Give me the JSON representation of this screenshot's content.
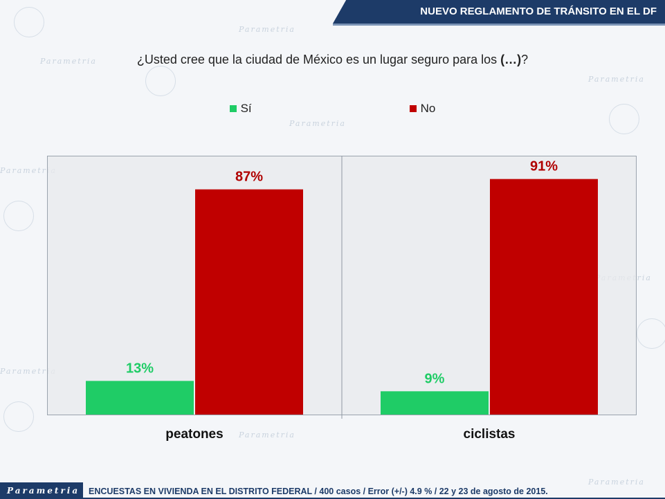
{
  "header": {
    "title": "NUEVO REGLAMENTO DE TRÁNSITO EN EL DF"
  },
  "question": {
    "prefix": "¿Usted cree que la ciudad de México es un lugar seguro para los ",
    "bold": "(…)",
    "suffix": "?"
  },
  "legend": [
    {
      "label": "Sí",
      "color": "#1fcc66"
    },
    {
      "label": "No",
      "color": "#c00000"
    }
  ],
  "watermark": "Parametria",
  "chart_data": {
    "type": "bar",
    "categories": [
      "peatones",
      "ciclistas"
    ],
    "series": [
      {
        "name": "Sí",
        "values": [
          13,
          9
        ],
        "labels": [
          "13%",
          "9%"
        ],
        "color": "#1fcc66"
      },
      {
        "name": "No",
        "values": [
          87,
          91
        ],
        "labels": [
          "87%",
          "91%"
        ],
        "color": "#c00000"
      }
    ],
    "ylim": [
      0,
      100
    ],
    "grid": false,
    "legend_position": "top-center"
  },
  "footer": {
    "logo": "Parametria",
    "text": "ENCUESTAS EN VIVIENDA EN EL DISTRITO FEDERAL / 400 casos / Error (+/-) 4.9 % / 22 y 23 de agosto de 2015."
  }
}
